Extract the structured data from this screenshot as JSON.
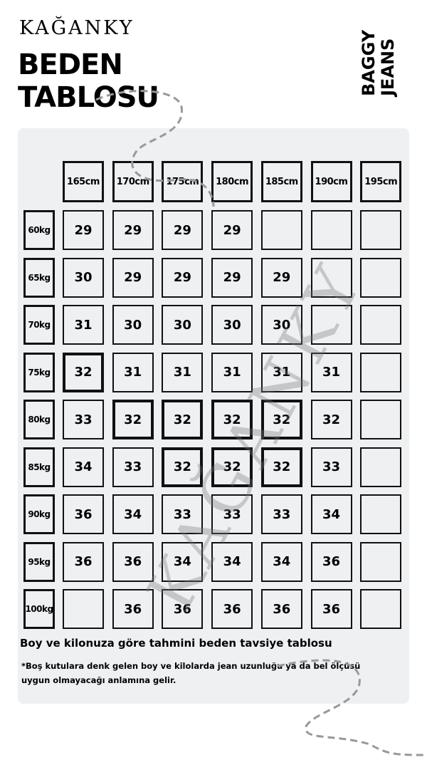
{
  "brand": "KAĞANKY",
  "title_line1": "BEDEN",
  "title_line2": "TABLOSU",
  "side_line1": "BAGGY",
  "side_line2": "JEANS",
  "watermark": "KAĞANKY",
  "heights": [
    "165cm",
    "170cm",
    "175cm",
    "180cm",
    "185cm",
    "190cm",
    "195cm"
  ],
  "rows": [
    {
      "weight": "60kg",
      "sizes": [
        "29",
        "29",
        "29",
        "29",
        "",
        "",
        ""
      ],
      "highlight": []
    },
    {
      "weight": "65kg",
      "sizes": [
        "30",
        "29",
        "29",
        "29",
        "29",
        "",
        ""
      ],
      "highlight": []
    },
    {
      "weight": "70kg",
      "sizes": [
        "31",
        "30",
        "30",
        "30",
        "30",
        "",
        ""
      ],
      "highlight": []
    },
    {
      "weight": "75kg",
      "sizes": [
        "32",
        "31",
        "31",
        "31",
        "31",
        "31",
        ""
      ],
      "highlight": [
        0
      ]
    },
    {
      "weight": "80kg",
      "sizes": [
        "33",
        "32",
        "32",
        "32",
        "32",
        "32",
        ""
      ],
      "highlight": [
        1,
        2,
        3,
        4
      ]
    },
    {
      "weight": "85kg",
      "sizes": [
        "34",
        "33",
        "32",
        "32",
        "32",
        "33",
        ""
      ],
      "highlight": [
        2,
        3,
        4
      ]
    },
    {
      "weight": "90kg",
      "sizes": [
        "36",
        "34",
        "33",
        "33",
        "33",
        "34",
        ""
      ],
      "highlight": []
    },
    {
      "weight": "95kg",
      "sizes": [
        "36",
        "36",
        "34",
        "34",
        "34",
        "36",
        ""
      ],
      "highlight": []
    },
    {
      "weight": "100kg",
      "sizes": [
        "",
        "36",
        "36",
        "36",
        "36",
        "36",
        ""
      ],
      "highlight": []
    }
  ],
  "caption": "Boy ve kilonuza göre tahmini beden tavsiye tablosu",
  "footnote": "*Boş kutulara denk gelen boy ve kilolarda jean uzunluğu ya da bel ölçüsü uygun olmayacağı anlamına gelir.",
  "colors": {
    "panel": "#eef0f1",
    "border": "#111111"
  }
}
